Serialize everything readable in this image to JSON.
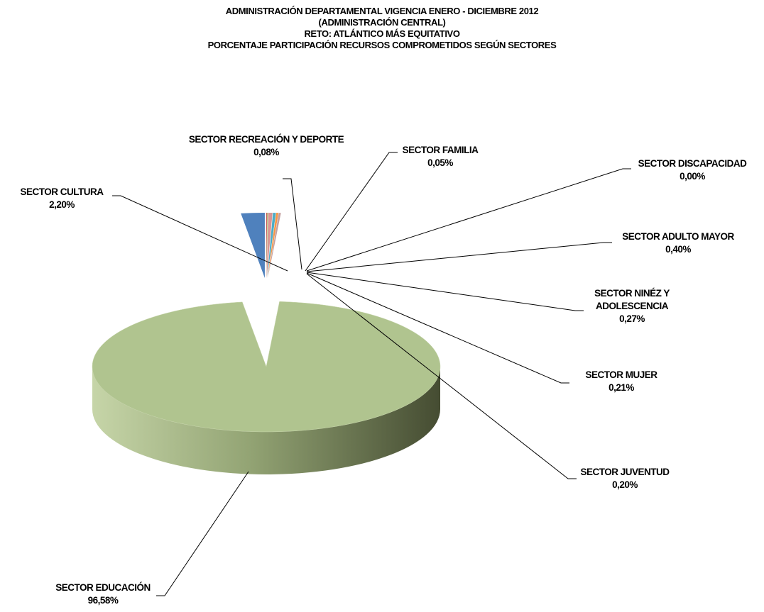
{
  "chart_data": {
    "type": "pie",
    "title": [
      "ADMINISTRACIÓN DEPARTAMENTAL VIGENCIA ENERO -  DICIEMBRE 2012",
      "(ADMINISTRACIÓN CENTRAL)",
      "RETO: ATLÁNTICO MÁS EQUITATIVO",
      "PORCENTAJE PARTICIPACIÓN RECURSOS COMPROMETIDOS SEGÚN SECTORES"
    ],
    "categories": [
      "SECTOR CULTURA",
      "SECTOR RECREACIÓN Y DEPORTE",
      "SECTOR FAMILIA",
      "SECTOR DISCAPACIDAD",
      "SECTOR ADULTO MAYOR",
      "SECTOR NINÉZ Y ADOLESCENCIA",
      "SECTOR MUJER",
      "SECTOR JUVENTUD",
      "SECTOR EDUCACIÓN"
    ],
    "values": [
      2.2,
      0.08,
      0.05,
      0.0,
      0.4,
      0.27,
      0.21,
      0.2,
      96.58
    ],
    "value_labels": [
      "2,20%",
      "0,08%",
      "0,05%",
      "0,00%",
      "0,40%",
      "0,27%",
      "0,21%",
      "0,20%",
      "96,58%"
    ],
    "colors": [
      "#4f81bd",
      "#c0504d",
      "#9bbb59",
      "#8064a2",
      "#d99694",
      "#4bacc6",
      "#f79646",
      "#c3a0a0",
      "#b0c48f"
    ]
  }
}
